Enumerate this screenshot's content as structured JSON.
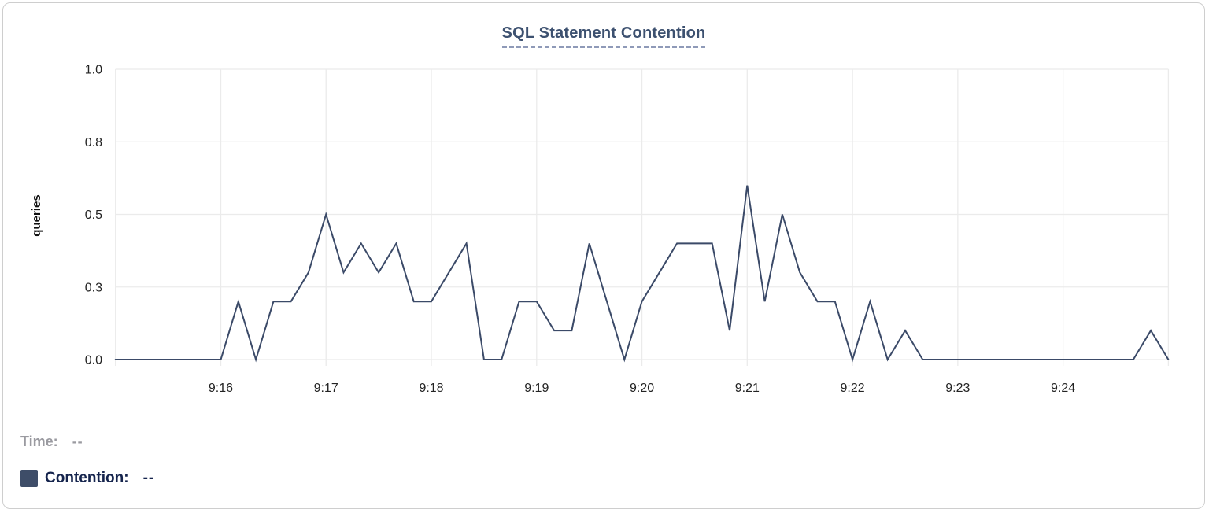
{
  "title": "SQL Statement Contention",
  "legend": {
    "time_label": "Time:",
    "time_value": "--",
    "contention_label": "Contention:",
    "contention_value": "--",
    "swatch_color": "#3e4d68"
  },
  "chart_data": {
    "type": "line",
    "title": "SQL Statement Contention",
    "xlabel": "",
    "ylabel": "queries",
    "ylim": [
      0,
      1
    ],
    "grid": true,
    "legend_position": "bottom-left",
    "series_name": "Contention",
    "line_color": "#3b4a68",
    "y_ticks": [
      {
        "label": "0.0",
        "value": 0
      },
      {
        "label": "0.3",
        "value": 0.25
      },
      {
        "label": "0.5",
        "value": 0.5
      },
      {
        "label": "0.8",
        "value": 0.75
      },
      {
        "label": "1.0",
        "value": 1
      }
    ],
    "x_ticks": [
      "9:16",
      "9:17",
      "9:18",
      "9:19",
      "9:20",
      "9:21",
      "9:22",
      "9:23",
      "9:24"
    ],
    "x_range": [
      "9:15:00",
      "9:25:00"
    ],
    "interval_seconds": 10,
    "times": [
      "9:15:00",
      "9:15:10",
      "9:15:20",
      "9:15:30",
      "9:15:40",
      "9:15:50",
      "9:16:00",
      "9:16:10",
      "9:16:20",
      "9:16:30",
      "9:16:40",
      "9:16:50",
      "9:17:00",
      "9:17:10",
      "9:17:20",
      "9:17:30",
      "9:17:40",
      "9:17:50",
      "9:18:00",
      "9:18:10",
      "9:18:20",
      "9:18:30",
      "9:18:40",
      "9:18:50",
      "9:19:00",
      "9:19:10",
      "9:19:20",
      "9:19:30",
      "9:19:40",
      "9:19:50",
      "9:20:00",
      "9:20:10",
      "9:20:20",
      "9:20:30",
      "9:20:40",
      "9:20:50",
      "9:21:00",
      "9:21:10",
      "9:21:20",
      "9:21:30",
      "9:21:40",
      "9:21:50",
      "9:22:00",
      "9:22:10",
      "9:22:20",
      "9:22:30",
      "9:22:40",
      "9:22:50",
      "9:23:00",
      "9:23:10",
      "9:23:20",
      "9:23:30",
      "9:23:40",
      "9:23:50",
      "9:24:00",
      "9:24:10",
      "9:24:20",
      "9:24:30",
      "9:24:40",
      "9:24:50",
      "9:25:00"
    ],
    "values": [
      0,
      0,
      0,
      0,
      0,
      0,
      0,
      0.2,
      0,
      0.2,
      0.2,
      0.3,
      0.5,
      0.3,
      0.4,
      0.3,
      0.4,
      0.2,
      0.2,
      0.3,
      0.4,
      0,
      0,
      0.2,
      0.2,
      0.1,
      0.1,
      0.4,
      0.2,
      0,
      0.2,
      0.3,
      0.4,
      0.4,
      0.4,
      0.1,
      0.6,
      0.2,
      0.5,
      0.3,
      0.2,
      0.2,
      0,
      0.2,
      0,
      0.1,
      0,
      0,
      0,
      0,
      0,
      0,
      0,
      0,
      0,
      0,
      0,
      0,
      0,
      0.1,
      0
    ]
  }
}
